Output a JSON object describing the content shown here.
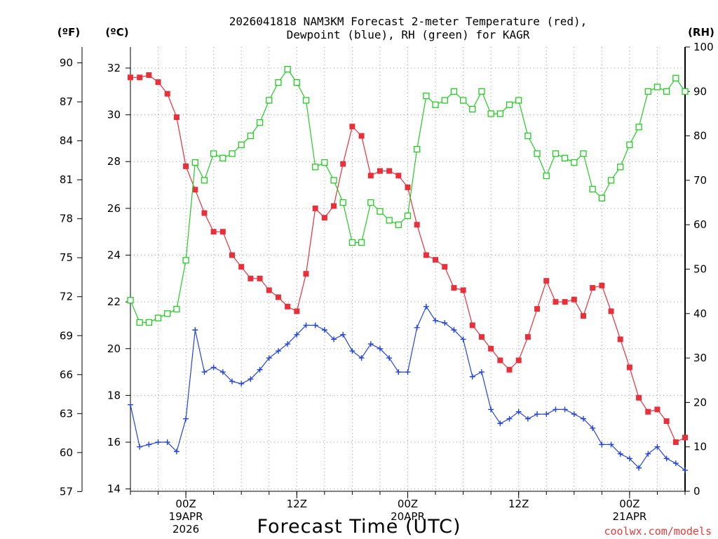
{
  "chart_data": {
    "type": "line",
    "title_line1": "2026041818 NAM3KM Forecast 2-meter Temperature (red),",
    "title_line2": "Dewpoint (blue), RH (green) for KAGR",
    "xlabel": "Forecast Time (UTC)",
    "credit": "coolwx.com/models",
    "left_outer_unit": "(ºF)",
    "left_inner_unit": "(ºC)",
    "right_unit": "(RH)",
    "fahrenheit_ticks": [
      "57",
      "60",
      "63",
      "66",
      "69",
      "72",
      "75",
      "78",
      "81",
      "84",
      "87",
      "90"
    ],
    "celsius_ticks": [
      "14",
      "16",
      "18",
      "20",
      "22",
      "24",
      "26",
      "28",
      "30",
      "32"
    ],
    "rh_ticks": [
      "0",
      "10",
      "20",
      "30",
      "40",
      "50",
      "60",
      "70",
      "80",
      "90",
      "100"
    ],
    "ylim_celsius": [
      13.9,
      32.9
    ],
    "ylim_rh": [
      0,
      100
    ],
    "x_range_hours": [
      0,
      60
    ],
    "x_ticks": [
      {
        "hour": 6,
        "line1": "00Z",
        "line2": "19APR",
        "line3": "2026"
      },
      {
        "hour": 18,
        "line1": "12Z",
        "line2": "",
        "line3": ""
      },
      {
        "hour": 30,
        "line1": "00Z",
        "line2": "20APR",
        "line3": ""
      },
      {
        "hour": 42,
        "line1": "12Z",
        "line2": "",
        "line3": ""
      },
      {
        "hour": 54,
        "line1": "00Z",
        "line2": "21APR",
        "line3": ""
      }
    ],
    "x_hours": [
      0,
      1,
      2,
      3,
      4,
      5,
      6,
      7,
      8,
      9,
      10,
      11,
      12,
      13,
      14,
      15,
      16,
      17,
      18,
      19,
      20,
      21,
      22,
      23,
      24,
      25,
      26,
      27,
      28,
      29,
      30,
      31,
      32,
      33,
      34,
      35,
      36,
      37,
      38,
      39,
      40,
      41,
      42,
      43,
      44,
      45,
      46,
      47,
      48,
      49,
      50,
      51,
      52,
      53,
      54,
      55,
      56,
      57,
      58,
      59,
      60
    ],
    "series": [
      {
        "name": "2-meter Temperature",
        "axis": "celsius",
        "color": "#e8303a",
        "marker": "filled-square",
        "values": [
          31.6,
          31.6,
          31.7,
          31.4,
          30.9,
          29.9,
          27.8,
          26.8,
          25.8,
          25.0,
          25.0,
          24.0,
          23.5,
          23.0,
          23.0,
          22.5,
          22.2,
          21.8,
          21.6,
          23.2,
          26.0,
          25.6,
          26.1,
          27.9,
          29.5,
          29.1,
          27.4,
          27.6,
          27.6,
          27.4,
          26.9,
          25.3,
          24.0,
          23.8,
          23.5,
          22.6,
          22.5,
          21.0,
          20.5,
          20.0,
          19.5,
          19.1,
          19.5,
          20.5,
          21.7,
          22.9,
          22.0,
          22.0,
          22.1,
          21.4,
          22.6,
          22.7,
          21.6,
          20.4,
          19.2,
          17.9,
          17.3,
          17.4,
          16.9,
          16.0,
          16.2
        ]
      },
      {
        "name": "Dewpoint",
        "axis": "celsius",
        "color": "#2244dd",
        "marker": "plus",
        "values": [
          17.6,
          15.8,
          15.9,
          16.0,
          16.0,
          15.6,
          17.0,
          20.8,
          19.0,
          19.2,
          19.0,
          18.6,
          18.5,
          18.7,
          19.1,
          19.6,
          19.9,
          20.2,
          20.6,
          21.0,
          21.0,
          20.8,
          20.4,
          20.6,
          19.9,
          19.6,
          20.2,
          20.0,
          19.6,
          19.0,
          19.0,
          20.9,
          21.8,
          21.2,
          21.1,
          20.8,
          20.4,
          18.8,
          19.0,
          17.4,
          16.8,
          17.0,
          17.3,
          17.0,
          17.2,
          17.2,
          17.4,
          17.4,
          17.2,
          17.0,
          16.6,
          15.9,
          15.9,
          15.5,
          15.3,
          14.9,
          15.5,
          15.8,
          15.3,
          15.1,
          14.8
        ]
      },
      {
        "name": "RH",
        "axis": "rh",
        "color": "#22cc22",
        "marker": "open-square",
        "values": [
          43,
          38,
          38,
          39,
          40,
          41,
          52,
          74,
          70,
          76,
          75,
          76,
          78,
          80,
          83,
          88,
          92,
          95,
          92,
          88,
          73,
          74,
          70,
          65,
          56,
          56,
          65,
          63,
          61,
          60,
          62,
          77,
          89,
          87,
          88,
          90,
          88,
          86,
          90,
          85,
          85,
          87,
          88,
          80,
          76,
          71,
          76,
          75,
          74,
          76,
          68,
          66,
          70,
          73,
          78,
          82,
          90,
          91,
          90,
          93,
          90
        ]
      }
    ]
  }
}
